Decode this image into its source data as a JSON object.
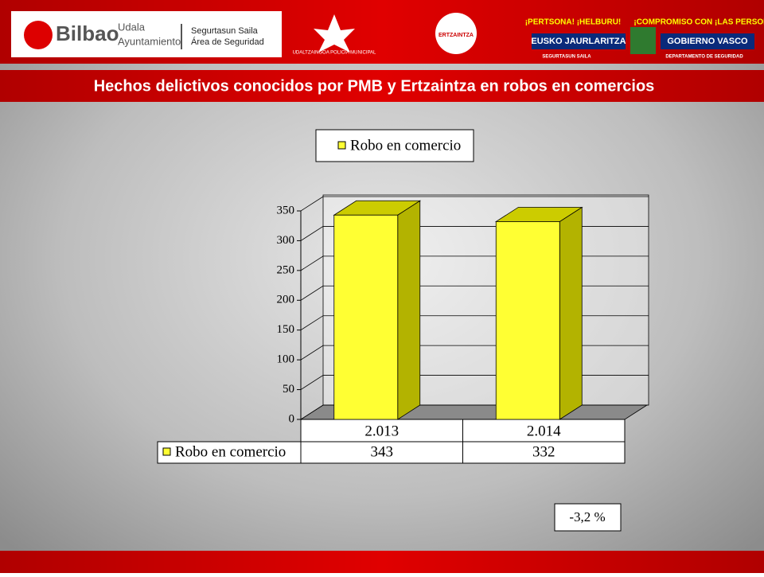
{
  "header": {
    "bilbao": "Bilbao",
    "udala": "Udala",
    "ayuntamiento": "Ayuntamiento",
    "dept_eu": "Segurtasun Saila",
    "dept_es": "Área de Seguridad",
    "police": "UDALTZAINGOA POLICÍA MUNICIPAL",
    "ertzaintza": "ERTZAINTZA",
    "slogan_eu": "¡PERTSONA! ¡HELBURU!",
    "slogan_es": "¡COMPROMISO CON ¡LAS PERSONAS!",
    "gov_eu": "EUSKO JAURLARITZA",
    "gov_es": "GOBIERNO VASCO",
    "sub_eu": "SEGURTASUN SAILA",
    "sub_es": "DEPARTAMENTO DE SEGURIDAD"
  },
  "chart_data": {
    "type": "bar3d",
    "title": "Hechos delictivos conocidos por PMB y Ertzaintza en robos en comercios",
    "categories": [
      "2.013",
      "2.014"
    ],
    "series": [
      {
        "name": "Robo en comercio",
        "color": "#ffff33",
        "values": [
          343,
          332
        ]
      }
    ],
    "ylim": [
      0,
      350
    ],
    "yticks": [
      0,
      50,
      100,
      150,
      200,
      250,
      300,
      350
    ],
    "grid": true,
    "annotation": "-3,2 %"
  }
}
